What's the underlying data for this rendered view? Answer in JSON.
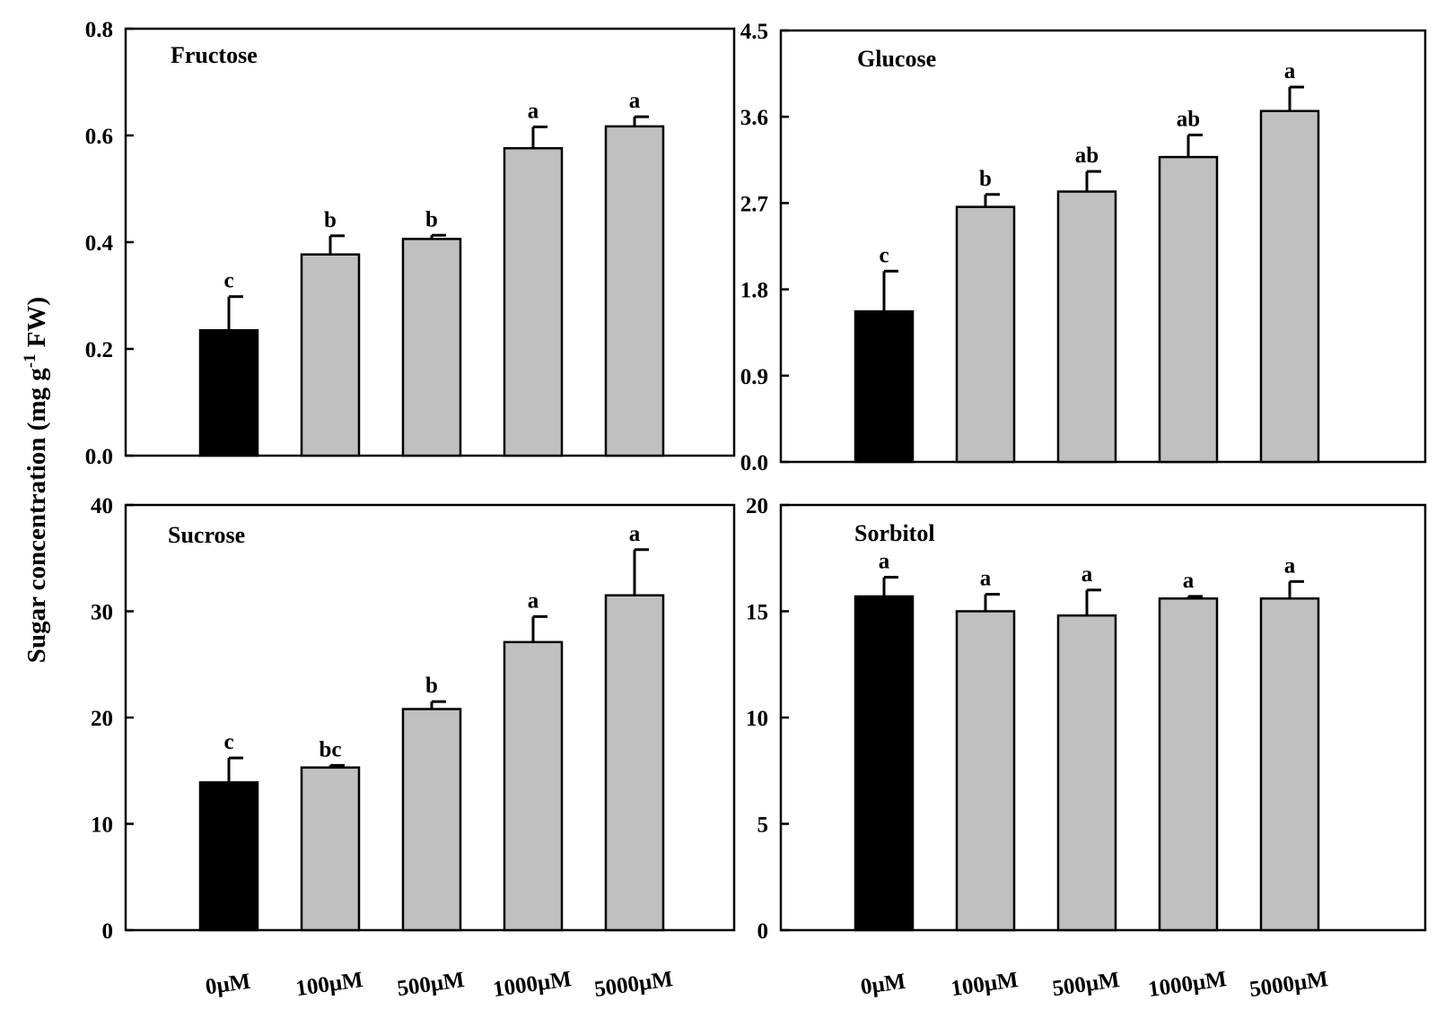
{
  "figure": {
    "ylabel_main": "Sugar concentration (mg g",
    "ylabel_sup": "-1",
    "ylabel_end": " FW)"
  },
  "colors": {
    "control": "#000000",
    "treatment": "#c0c0c0",
    "outline": "#000000"
  },
  "chart_data": [
    {
      "type": "bar",
      "title": "Fructose",
      "categories": [
        "0μM",
        "100μM",
        "500μM",
        "1000μM",
        "5000μM"
      ],
      "values": [
        0.235,
        0.377,
        0.406,
        0.576,
        0.617
      ],
      "errors": [
        0.063,
        0.035,
        0.007,
        0.04,
        0.018
      ],
      "significance": [
        "c",
        "b",
        "b",
        "a",
        "a"
      ],
      "ylim": [
        0,
        0.8
      ],
      "yticks": [
        0.0,
        0.2,
        0.4,
        0.6,
        0.8
      ],
      "ytick_labels": [
        "0.0",
        "0.2",
        "0.4",
        "0.6",
        "0.8"
      ],
      "xlabel": "",
      "ylabel": "Sugar concentration (mg g-1 FW)",
      "show_category_labels": false
    },
    {
      "type": "bar",
      "title": "Glucose",
      "categories": [
        "0μM",
        "100μM",
        "500μM",
        "1000μM",
        "5000μM"
      ],
      "values": [
        1.57,
        2.66,
        2.82,
        3.18,
        3.66
      ],
      "errors": [
        0.42,
        0.13,
        0.21,
        0.23,
        0.25
      ],
      "significance": [
        "c",
        "b",
        "ab",
        "ab",
        "a"
      ],
      "ylim": [
        0,
        4.5
      ],
      "yticks": [
        0.0,
        0.9,
        1.8,
        2.7,
        3.6,
        4.5
      ],
      "ytick_labels": [
        "0.0",
        "0.9",
        "1.8",
        "2.7",
        "3.6",
        "4.5"
      ],
      "xlabel": "",
      "ylabel": "",
      "show_category_labels": false
    },
    {
      "type": "bar",
      "title": "Sucrose",
      "categories": [
        "0μM",
        "100μM",
        "500μM",
        "1000μM",
        "5000μM"
      ],
      "values": [
        13.9,
        15.3,
        20.8,
        27.1,
        31.5
      ],
      "errors": [
        2.3,
        0.2,
        0.7,
        2.4,
        4.3
      ],
      "significance": [
        "c",
        "bc",
        "b",
        "a",
        "a"
      ],
      "ylim": [
        0,
        40
      ],
      "yticks": [
        0,
        10,
        20,
        30,
        40
      ],
      "ytick_labels": [
        "0",
        "10",
        "20",
        "30",
        "40"
      ],
      "xlabel": "",
      "ylabel": "",
      "show_category_labels": true
    },
    {
      "type": "bar",
      "title": "Sorbitol",
      "categories": [
        "0μM",
        "100μM",
        "500μM",
        "1000μM",
        "5000μM"
      ],
      "values": [
        15.7,
        15.0,
        14.8,
        15.6,
        15.6
      ],
      "errors": [
        0.9,
        0.8,
        1.2,
        0.1,
        0.8
      ],
      "significance": [
        "a",
        "a",
        "a",
        "a",
        "a"
      ],
      "ylim": [
        0,
        20
      ],
      "yticks": [
        0,
        5,
        10,
        15,
        20
      ],
      "ytick_labels": [
        "0",
        "5",
        "10",
        "15",
        "20"
      ],
      "xlabel": "",
      "ylabel": "",
      "show_category_labels": true
    }
  ]
}
